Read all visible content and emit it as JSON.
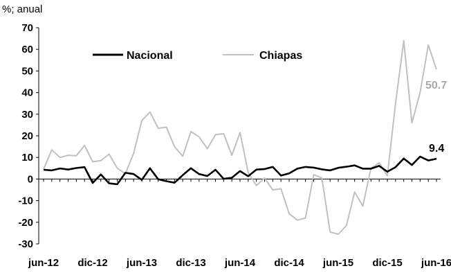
{
  "chart_data": {
    "type": "line",
    "ylabel": "%; anual",
    "ylim": [
      -30,
      70
    ],
    "yticks": [
      70,
      60,
      50,
      40,
      30,
      20,
      10,
      0,
      -10,
      -20,
      -30
    ],
    "x_tick_labels": [
      "jun-12",
      "dic-12",
      "jun-13",
      "dic-13",
      "jun-14",
      "dic-14",
      "jun-15",
      "dic-15",
      "jun-16"
    ],
    "x": [
      "jun-12",
      "jul-12",
      "ago-12",
      "sep-12",
      "oct-12",
      "nov-12",
      "dic-12",
      "ene-13",
      "feb-13",
      "mar-13",
      "abr-13",
      "may-13",
      "jun-13",
      "jul-13",
      "ago-13",
      "sep-13",
      "oct-13",
      "nov-13",
      "dic-13",
      "ene-14",
      "feb-14",
      "mar-14",
      "abr-14",
      "may-14",
      "jun-14",
      "jul-14",
      "ago-14",
      "sep-14",
      "oct-14",
      "nov-14",
      "dic-14",
      "ene-15",
      "feb-15",
      "mar-15",
      "abr-15",
      "may-15",
      "jun-15",
      "jul-15",
      "ago-15",
      "sep-15",
      "oct-15",
      "nov-15",
      "dic-15",
      "ene-16",
      "feb-16",
      "mar-16",
      "abr-16",
      "may-16",
      "jun-16"
    ],
    "legend_position": "top",
    "grid": false,
    "series": [
      {
        "name": "Nacional",
        "color": "#000000",
        "values": [
          4.3,
          4.0,
          4.9,
          4.4,
          5.1,
          5.5,
          -1.8,
          2.1,
          -2.0,
          -2.4,
          2.9,
          2.3,
          -0.4,
          5.0,
          -0.1,
          -1.0,
          -1.7,
          1.8,
          5.0,
          2.3,
          1.4,
          4.3,
          0.1,
          0.6,
          3.7,
          1.3,
          4.4,
          4.6,
          5.6,
          1.6,
          2.6,
          4.8,
          5.6,
          5.3,
          4.5,
          4.0,
          5.2,
          5.7,
          6.3,
          4.8,
          4.8,
          6.1,
          3.4,
          5.5,
          9.5,
          6.5,
          10.4,
          8.6,
          9.4
        ]
      },
      {
        "name": "Chiapas",
        "color": "#c0c0c0",
        "values": [
          4.5,
          13.5,
          10.0,
          11.0,
          10.8,
          15.5,
          8.0,
          8.5,
          11.5,
          5.0,
          2.5,
          12.0,
          27.0,
          31.0,
          23.5,
          24.0,
          15.0,
          10.5,
          22.0,
          19.5,
          14.0,
          20.5,
          21.0,
          11.0,
          21.5,
          3.0,
          -3.0,
          0.5,
          -5.0,
          -4.5,
          -16.0,
          -19.0,
          -18.0,
          2.0,
          0.5,
          -24.5,
          -25.5,
          -21.5,
          -6.0,
          -12.5,
          5.0,
          7.5,
          1.5,
          35.0,
          64.0,
          26.0,
          40.0,
          62.0,
          50.7
        ]
      }
    ],
    "end_labels": {
      "Nacional": "9.4",
      "Chiapas": "50.7"
    }
  }
}
